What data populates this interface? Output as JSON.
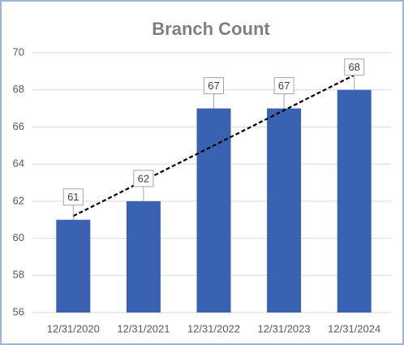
{
  "chart_data": {
    "type": "bar",
    "title": "Branch Count",
    "categories": [
      "12/31/2020",
      "12/31/2021",
      "12/31/2022",
      "12/31/2023",
      "12/31/2024"
    ],
    "values": [
      61,
      62,
      67,
      67,
      68
    ],
    "color": "#3a62b3",
    "ylim": [
      56,
      70
    ],
    "yticks": [
      56,
      58,
      60,
      62,
      64,
      66,
      68,
      70
    ],
    "grid": true,
    "trendline": "linear"
  }
}
